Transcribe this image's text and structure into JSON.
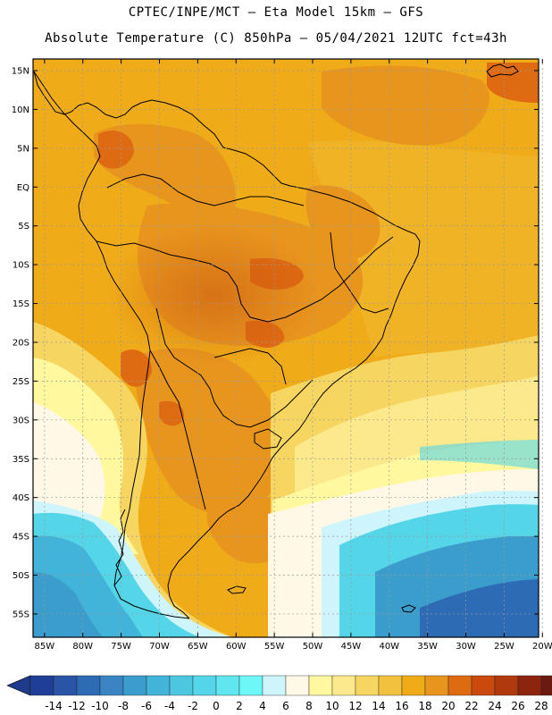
{
  "header": {
    "line1": "CPTEC/INPE/MCT –  Eta Model 15km – GFS",
    "line2": "Absolute Temperature (C) 850hPa – 05/04/2021 12UTC fct=43h"
  },
  "map": {
    "lat_labels": [
      "15N",
      "10N",
      "5N",
      "EQ",
      "5S",
      "10S",
      "15S",
      "20S",
      "25S",
      "30S",
      "35S",
      "40S",
      "45S",
      "50S",
      "55S"
    ],
    "lat_values": [
      15,
      10,
      5,
      0,
      -5,
      -10,
      -15,
      -20,
      -25,
      -30,
      -35,
      -40,
      -45,
      -50,
      -55
    ],
    "lon_labels": [
      "85W",
      "80W",
      "75W",
      "70W",
      "65W",
      "60W",
      "55W",
      "50W",
      "45W",
      "40W",
      "35W",
      "30W",
      "25W",
      "20W"
    ],
    "lon_values": [
      -85,
      -80,
      -75,
      -70,
      -65,
      -60,
      -55,
      -50,
      -45,
      -40,
      -35,
      -30,
      -25,
      -20
    ],
    "lat_range": [
      -58,
      16.5
    ],
    "lon_range": [
      -86.5,
      -20.5
    ]
  },
  "colorbar": {
    "labels": [
      "-14",
      "-12",
      "-10",
      "-8",
      "-6",
      "-4",
      "-2",
      "0",
      "2",
      "4",
      "6",
      "8",
      "10",
      "12",
      "14",
      "16",
      "18",
      "20",
      "22",
      "24",
      "26",
      "28"
    ],
    "colors": [
      "#1f3f97",
      "#2a55a6",
      "#2d6bb5",
      "#3a84c4",
      "#3a9dcc",
      "#42b3d9",
      "#4dc7e0",
      "#55d6e8",
      "#5fe6ef",
      "#6df7f7",
      "#cdf5fb",
      "#fff8e6",
      "#fff89e",
      "#fbe98c",
      "#f6d660",
      "#f2c23f",
      "#f0ab19",
      "#e8951e",
      "#de6a12",
      "#c94a0c",
      "#b03a0e",
      "#8c240e",
      "#6b1a12"
    ],
    "low_color": "#1e3a8a",
    "high_color": "#7a0d1c"
  }
}
